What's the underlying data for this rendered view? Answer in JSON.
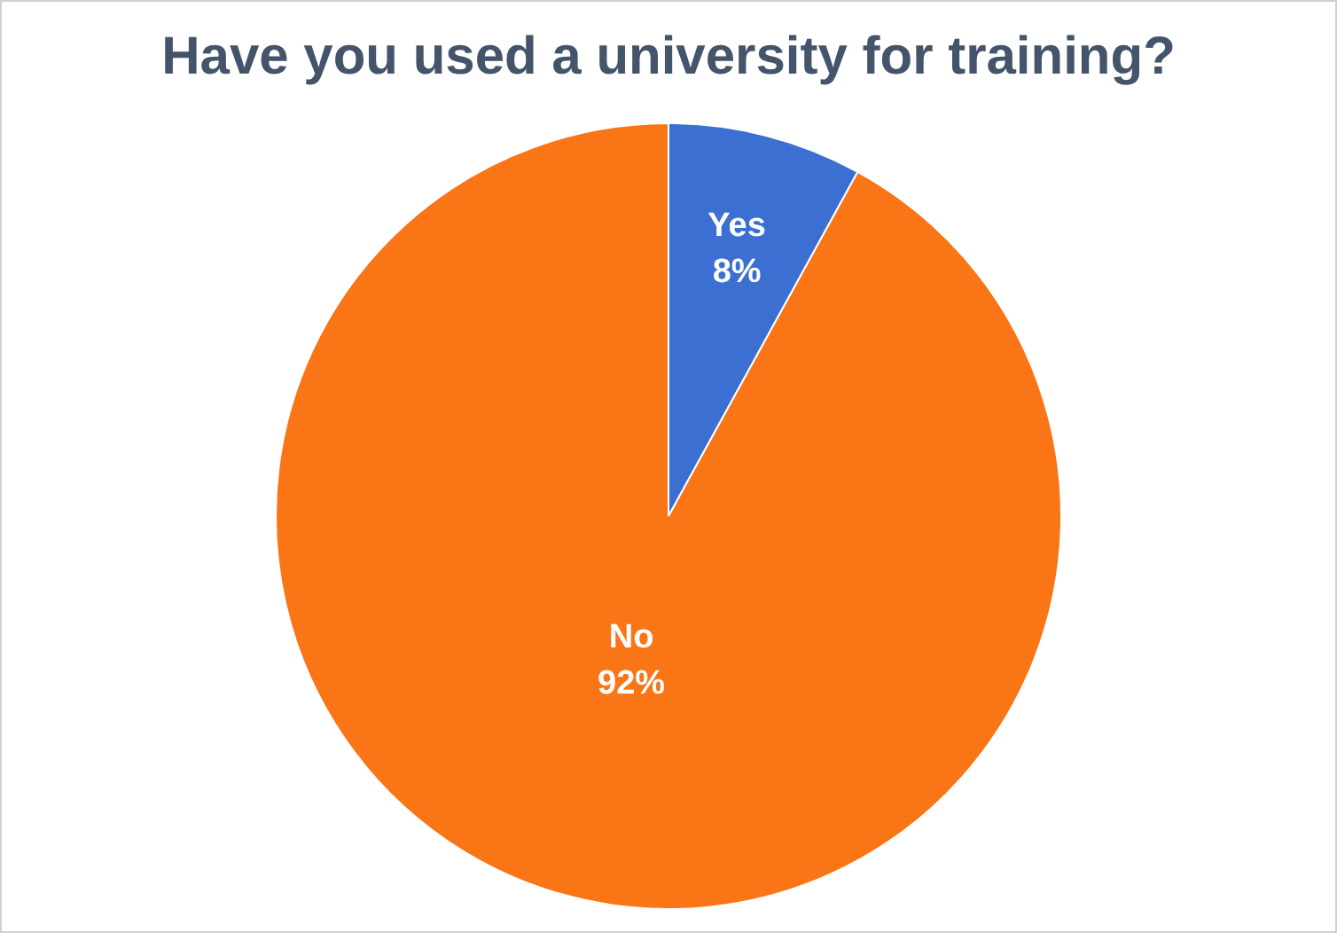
{
  "chart_data": {
    "type": "pie",
    "title": "Have you used a university for training?",
    "categories": [
      "Yes",
      "No"
    ],
    "values": [
      8,
      92
    ],
    "colors": [
      "#3b6fd1",
      "#f97516"
    ],
    "value_labels": [
      "8%",
      "92%"
    ],
    "legend": false
  }
}
